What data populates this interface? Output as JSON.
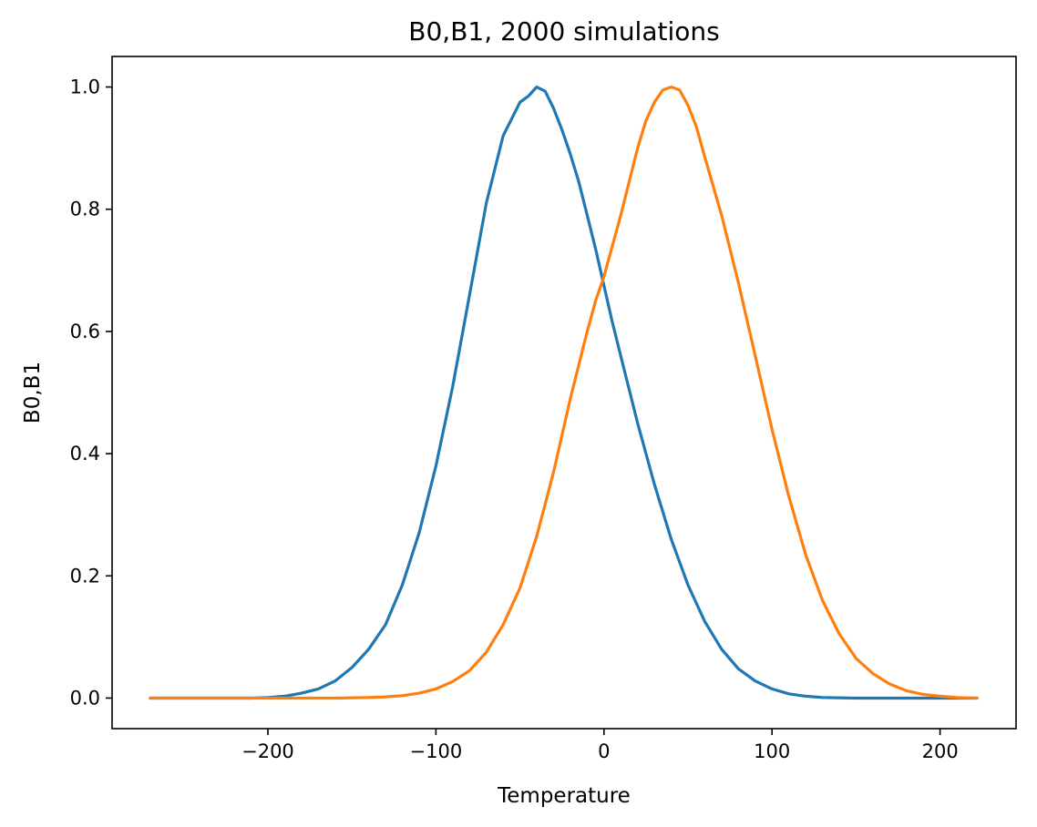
{
  "chart_data": {
    "type": "line",
    "title": "B0,B1, 2000 simulations",
    "xlabel": "Temperature",
    "ylabel": "B0,B1",
    "xlim": [
      -292.7,
      245.2
    ],
    "ylim": [
      -0.05,
      1.05
    ],
    "xticks": [
      -200,
      -100,
      0,
      100,
      200
    ],
    "xtick_labels": [
      "−200",
      "−100",
      "0",
      "100",
      "200"
    ],
    "yticks": [
      0.0,
      0.2,
      0.4,
      0.6,
      0.8,
      1.0
    ],
    "ytick_labels": [
      "0.0",
      "0.2",
      "0.4",
      "0.6",
      "0.8",
      "1.0"
    ],
    "grid": false,
    "series": [
      {
        "color": "#1f77b4",
        "x": [
          -270,
          -250,
          -230,
          -210,
          -200,
          -190,
          -180,
          -170,
          -160,
          -150,
          -140,
          -130,
          -120,
          -110,
          -100,
          -90,
          -80,
          -70,
          -60,
          -50,
          -45,
          -40,
          -35,
          -30,
          -25,
          -20,
          -15,
          -10,
          -5,
          0,
          5,
          10,
          20,
          30,
          40,
          50,
          60,
          70,
          80,
          90,
          100,
          110,
          120,
          130,
          150,
          180,
          222
        ],
        "y": [
          0.0,
          0.0,
          0.0,
          0.0,
          0.001,
          0.003,
          0.008,
          0.015,
          0.028,
          0.05,
          0.08,
          0.12,
          0.185,
          0.27,
          0.38,
          0.51,
          0.66,
          0.81,
          0.92,
          0.975,
          0.985,
          1.0,
          0.993,
          0.965,
          0.93,
          0.89,
          0.845,
          0.79,
          0.735,
          0.675,
          0.615,
          0.56,
          0.45,
          0.35,
          0.26,
          0.185,
          0.125,
          0.08,
          0.048,
          0.028,
          0.015,
          0.007,
          0.003,
          0.001,
          0.0,
          0.0,
          0.0
        ]
      },
      {
        "color": "#ff7f0e",
        "x": [
          -270,
          -230,
          -190,
          -160,
          -140,
          -130,
          -120,
          -110,
          -100,
          -90,
          -80,
          -70,
          -60,
          -50,
          -40,
          -30,
          -20,
          -10,
          -5,
          0,
          10,
          20,
          25,
          30,
          35,
          40,
          45,
          50,
          55,
          60,
          70,
          80,
          90,
          100,
          110,
          120,
          130,
          140,
          150,
          160,
          170,
          180,
          190,
          200,
          210,
          222
        ],
        "y": [
          0.0,
          0.0,
          0.0,
          0.0,
          0.001,
          0.002,
          0.004,
          0.008,
          0.015,
          0.027,
          0.045,
          0.075,
          0.12,
          0.18,
          0.265,
          0.37,
          0.49,
          0.6,
          0.65,
          0.69,
          0.79,
          0.9,
          0.945,
          0.975,
          0.995,
          1.0,
          0.995,
          0.97,
          0.935,
          0.885,
          0.79,
          0.68,
          0.56,
          0.44,
          0.33,
          0.235,
          0.16,
          0.105,
          0.065,
          0.04,
          0.023,
          0.012,
          0.006,
          0.003,
          0.001,
          0.0
        ]
      }
    ]
  }
}
